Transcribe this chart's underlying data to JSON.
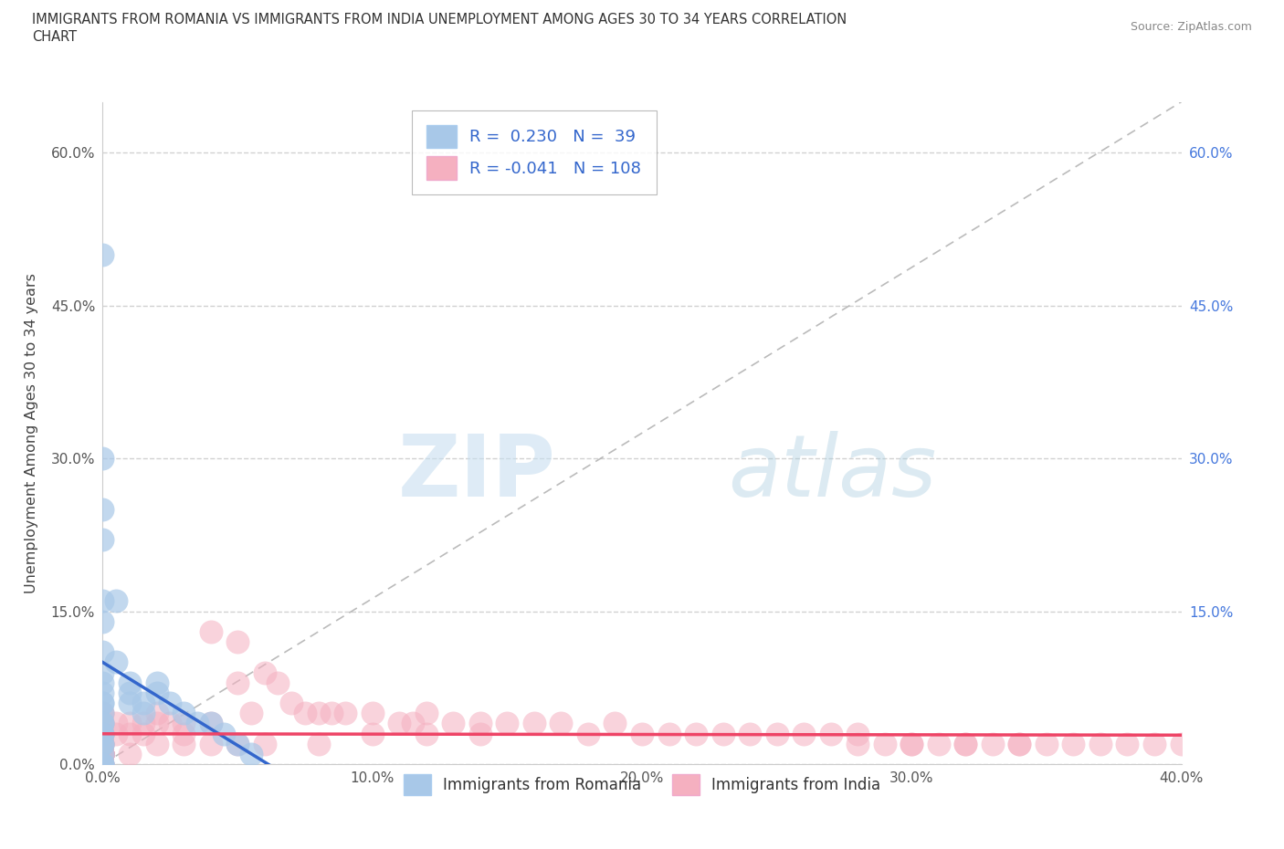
{
  "title_line1": "IMMIGRANTS FROM ROMANIA VS IMMIGRANTS FROM INDIA UNEMPLOYMENT AMONG AGES 30 TO 34 YEARS CORRELATION",
  "title_line2": "CHART",
  "source_text": "Source: ZipAtlas.com",
  "ylabel": "Unemployment Among Ages 30 to 34 years",
  "romania_R": 0.23,
  "romania_N": 39,
  "india_R": -0.041,
  "india_N": 108,
  "romania_color": "#a8c8e8",
  "india_color": "#f5b0c0",
  "romania_line_color": "#3366cc",
  "india_line_color": "#ee4466",
  "background_color": "#ffffff",
  "grid_color": "#cccccc",
  "watermark_zip": "ZIP",
  "watermark_atlas": "atlas",
  "xlim": [
    0.0,
    0.4
  ],
  "ylim": [
    0.0,
    0.65
  ],
  "xticks": [
    0.0,
    0.1,
    0.2,
    0.3,
    0.4
  ],
  "yticks": [
    0.0,
    0.15,
    0.3,
    0.45,
    0.6
  ],
  "right_ytick_labels": [
    "",
    "15.0%",
    "30.0%",
    "45.0%",
    "60.0%"
  ],
  "legend_box_color": "#3366cc",
  "romania_x": [
    0.0,
    0.0,
    0.0,
    0.0,
    0.0,
    0.0,
    0.0,
    0.0,
    0.0,
    0.0,
    0.0,
    0.0,
    0.0,
    0.0,
    0.0,
    0.0,
    0.0,
    0.0,
    0.0,
    0.0,
    0.005,
    0.005,
    0.01,
    0.01,
    0.01,
    0.015,
    0.015,
    0.02,
    0.02,
    0.025,
    0.03,
    0.035,
    0.04,
    0.045,
    0.05,
    0.055,
    0.0,
    0.0,
    0.0
  ],
  "romania_y": [
    0.5,
    0.3,
    0.25,
    0.22,
    0.16,
    0.14,
    0.11,
    0.09,
    0.08,
    0.07,
    0.06,
    0.06,
    0.05,
    0.04,
    0.04,
    0.03,
    0.03,
    0.02,
    0.02,
    0.01,
    0.16,
    0.1,
    0.08,
    0.07,
    0.06,
    0.06,
    0.05,
    0.08,
    0.07,
    0.06,
    0.05,
    0.04,
    0.04,
    0.03,
    0.02,
    0.01,
    0.0,
    0.0,
    0.0
  ],
  "india_x": [
    0.0,
    0.0,
    0.0,
    0.0,
    0.0,
    0.0,
    0.0,
    0.0,
    0.0,
    0.0,
    0.0,
    0.0,
    0.0,
    0.0,
    0.0,
    0.0,
    0.0,
    0.0,
    0.0,
    0.0,
    0.005,
    0.005,
    0.01,
    0.01,
    0.015,
    0.015,
    0.02,
    0.02,
    0.025,
    0.03,
    0.03,
    0.04,
    0.04,
    0.05,
    0.05,
    0.055,
    0.06,
    0.065,
    0.07,
    0.075,
    0.08,
    0.085,
    0.09,
    0.1,
    0.11,
    0.115,
    0.12,
    0.13,
    0.14,
    0.15,
    0.16,
    0.17,
    0.18,
    0.19,
    0.2,
    0.21,
    0.22,
    0.23,
    0.24,
    0.25,
    0.26,
    0.27,
    0.28,
    0.29,
    0.3,
    0.31,
    0.32,
    0.33,
    0.34,
    0.35,
    0.36,
    0.37,
    0.38,
    0.39,
    0.4,
    0.28,
    0.3,
    0.32,
    0.34,
    0.1,
    0.12,
    0.14,
    0.08,
    0.06,
    0.05,
    0.04,
    0.03,
    0.02,
    0.01,
    0.0,
    0.0,
    0.0,
    0.0,
    0.0,
    0.0,
    0.0,
    0.0,
    0.0,
    0.0,
    0.0,
    0.0,
    0.0,
    0.0,
    0.0,
    0.0,
    0.0,
    0.0,
    0.0
  ],
  "india_y": [
    0.05,
    0.05,
    0.04,
    0.04,
    0.04,
    0.03,
    0.03,
    0.03,
    0.03,
    0.02,
    0.02,
    0.02,
    0.02,
    0.02,
    0.01,
    0.01,
    0.01,
    0.01,
    0.01,
    0.0,
    0.04,
    0.03,
    0.04,
    0.03,
    0.04,
    0.03,
    0.05,
    0.04,
    0.04,
    0.04,
    0.03,
    0.13,
    0.04,
    0.12,
    0.08,
    0.05,
    0.09,
    0.08,
    0.06,
    0.05,
    0.05,
    0.05,
    0.05,
    0.05,
    0.04,
    0.04,
    0.05,
    0.04,
    0.04,
    0.04,
    0.04,
    0.04,
    0.03,
    0.04,
    0.03,
    0.03,
    0.03,
    0.03,
    0.03,
    0.03,
    0.03,
    0.03,
    0.03,
    0.02,
    0.02,
    0.02,
    0.02,
    0.02,
    0.02,
    0.02,
    0.02,
    0.02,
    0.02,
    0.02,
    0.02,
    0.02,
    0.02,
    0.02,
    0.02,
    0.03,
    0.03,
    0.03,
    0.02,
    0.02,
    0.02,
    0.02,
    0.02,
    0.02,
    0.01,
    0.01,
    0.01,
    0.01,
    0.01,
    0.01,
    0.01,
    0.01,
    0.01,
    0.01,
    0.01,
    0.01,
    0.01,
    0.01,
    0.01,
    0.01,
    0.01,
    0.01,
    0.0,
    0.0
  ]
}
